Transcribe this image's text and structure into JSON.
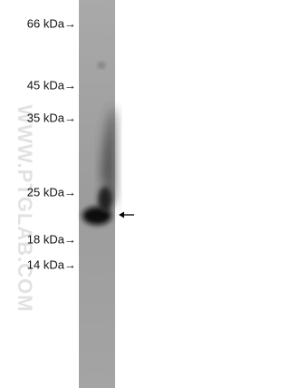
{
  "markers": [
    "66 kDa→",
    "45 kDa→",
    "35 kDa→",
    "25 kDa→",
    "18 kDa→",
    "14 kDa→"
  ],
  "watermark": "WWW.PTGLAB.COM"
}
